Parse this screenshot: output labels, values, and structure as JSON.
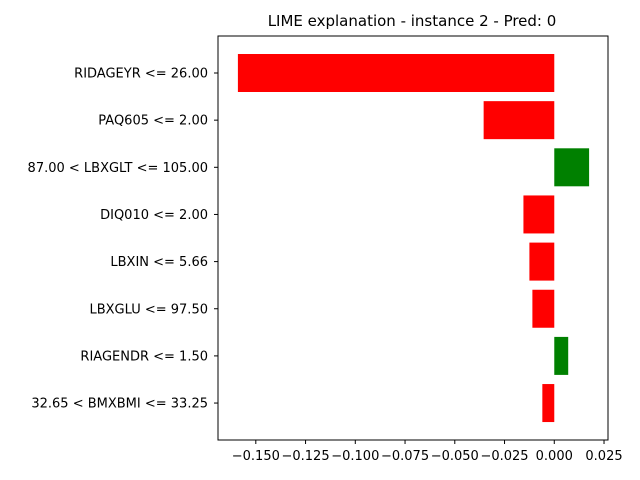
{
  "chart_data": {
    "type": "bar",
    "orientation": "horizontal",
    "title": "LIME explanation - instance 2 - Pred: 0",
    "xlabel": "",
    "ylabel": "",
    "categories": [
      "RIDAGEYR <= 26.00",
      "PAQ605 <= 2.00",
      "87.00 < LBXGLT <= 105.00",
      "DIQ010 <= 2.00",
      "LBXIN <= 5.66",
      "LBXGLU <= 97.50",
      "RIAGENDR <= 1.50",
      "32.65 < BMXBMI <= 33.25"
    ],
    "values": [
      -0.159,
      -0.0355,
      0.0175,
      -0.0155,
      -0.0125,
      -0.011,
      0.007,
      -0.006
    ],
    "colors": {
      "positive": "#008000",
      "negative": "#ff0000"
    },
    "xlim": [
      -0.169,
      0.027
    ],
    "xticks": [
      -0.15,
      -0.125,
      -0.1,
      -0.075,
      -0.05,
      -0.025,
      0.0,
      0.025
    ],
    "xtick_labels": [
      "−0.150",
      "−0.125",
      "−0.100",
      "−0.075",
      "−0.050",
      "−0.025",
      "0.000",
      "0.025"
    ],
    "grid": false,
    "legend": "none"
  }
}
